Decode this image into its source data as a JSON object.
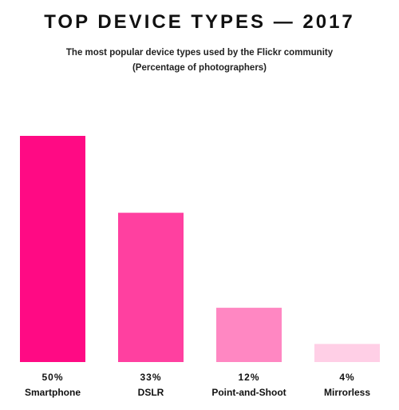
{
  "chart_data": {
    "type": "bar",
    "title": "TOP DEVICE TYPES — 2017",
    "subtitle_lines": [
      "The most popular device types used by the Flickr community",
      "(Percentage of photographers)"
    ],
    "categories": [
      "Smartphone",
      "DSLR",
      "Point-and-Shoot",
      "Mirrorless"
    ],
    "values": [
      50,
      33,
      12,
      4
    ],
    "value_labels": [
      "50%",
      "33%",
      "12%",
      "4%"
    ],
    "bar_colors": [
      "#ff0a84",
      "#ff40a0",
      "#ff87c2",
      "#ffcfe6"
    ],
    "ylim": [
      0,
      50
    ],
    "xlabel": "",
    "ylabel": "",
    "grid": false,
    "legend": "none"
  }
}
